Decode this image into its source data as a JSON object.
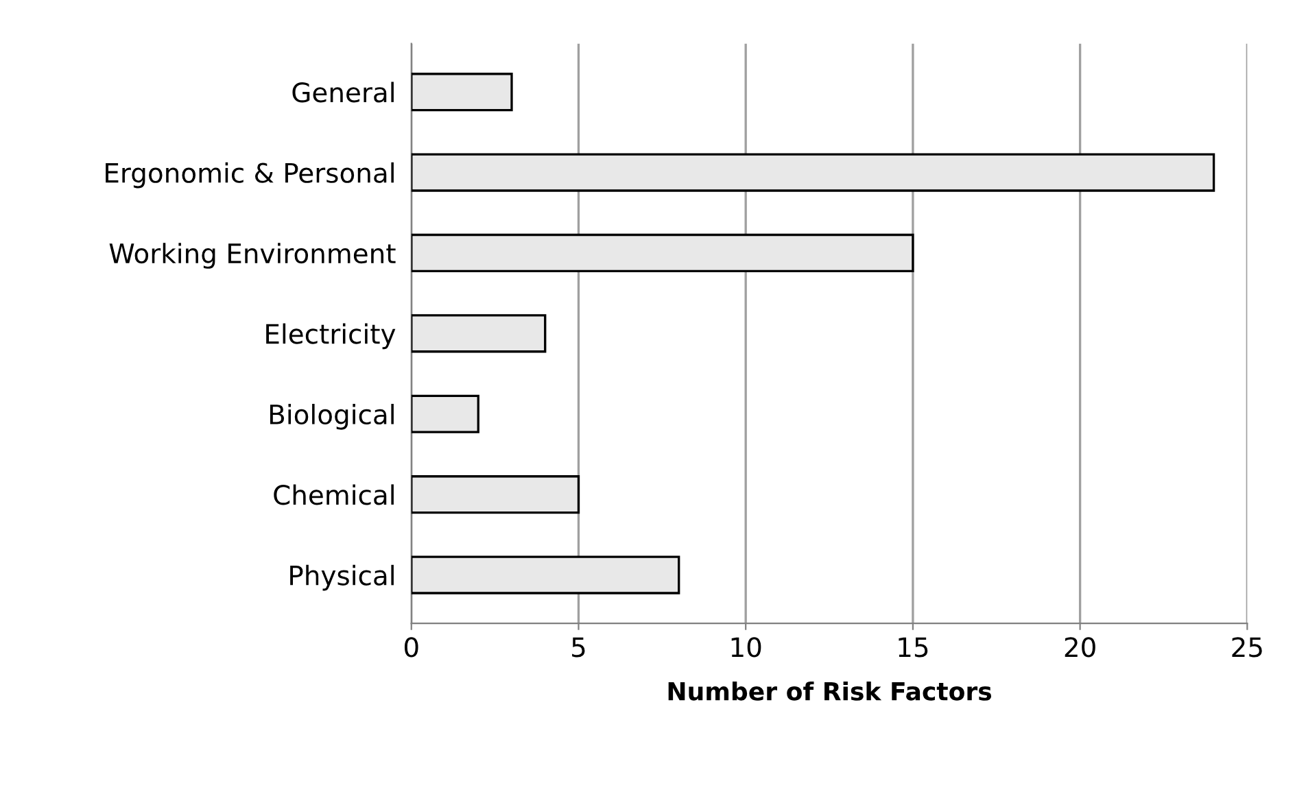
{
  "chart_data": {
    "type": "bar",
    "orientation": "horizontal",
    "xlabel": "Number of Risk Factors",
    "categories": [
      "General",
      "Ergonomic & Personal",
      "Working Environment",
      "Electricity",
      "Biological",
      "Chemical",
      "Physical"
    ],
    "values": [
      3,
      24,
      15,
      4,
      2,
      5,
      8
    ],
    "color": "#e8e8e8",
    "xlim": [
      0,
      25
    ],
    "xticks": [
      0,
      5,
      10,
      15,
      20,
      25
    ],
    "grid": "x"
  }
}
